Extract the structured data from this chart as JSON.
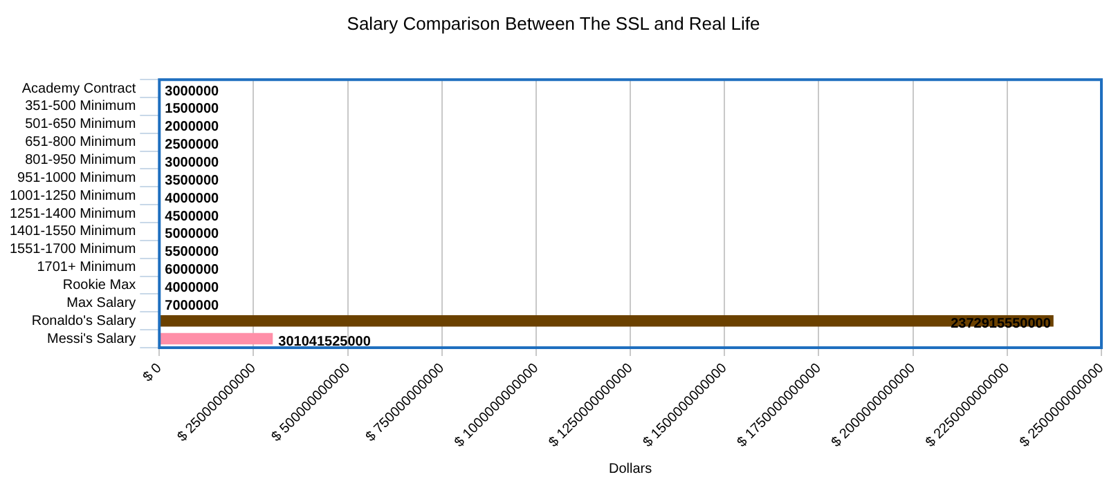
{
  "chart_data": {
    "type": "bar",
    "orientation": "horizontal",
    "title": "Salary Comparison Between The SSL and Real Life",
    "xlabel": "Dollars",
    "categories": [
      "Academy Contract",
      "351-500 Minimum",
      "501-650 Minimum",
      "651-800 Minimum",
      "801-950 Minimum",
      "951-1000 Minimum",
      "1001-1250 Minimum",
      "1251-1400 Minimum",
      "1401-1550 Minimum",
      "1551-1700 Minimum",
      "1701+ Minimum",
      "Rookie Max",
      "Max Salary",
      "Ronaldo's Salary",
      "Messi's Salary"
    ],
    "values": [
      3000000,
      1500000,
      2000000,
      2500000,
      3000000,
      3500000,
      4000000,
      4500000,
      5000000,
      5500000,
      6000000,
      4000000,
      7000000,
      2372915550000,
      301041525000
    ],
    "colors": [
      "#4472c4",
      "#4472c4",
      "#4472c4",
      "#4472c4",
      "#4472c4",
      "#4472c4",
      "#4472c4",
      "#4472c4",
      "#4472c4",
      "#4472c4",
      "#4472c4",
      "#4472c4",
      "#4472c4",
      "#6b4100",
      "#ff8fa8"
    ],
    "xlim": [
      0,
      2500000000000
    ],
    "xticks": [
      {
        "value": 0,
        "label": "$ 0"
      },
      {
        "value": 250000000000,
        "label": "$ 250000000000"
      },
      {
        "value": 500000000000,
        "label": "$ 500000000000"
      },
      {
        "value": 750000000000,
        "label": "$ 750000000000"
      },
      {
        "value": 1000000000000,
        "label": "$ 1000000000000"
      },
      {
        "value": 1250000000000,
        "label": "$ 1250000000000"
      },
      {
        "value": 1500000000000,
        "label": "$ 1500000000000"
      },
      {
        "value": 1750000000000,
        "label": "$ 1750000000000"
      },
      {
        "value": 2000000000000,
        "label": "$ 2000000000000"
      },
      {
        "value": 2250000000000,
        "label": "$ 2250000000000"
      },
      {
        "value": 2500000000000,
        "label": "$ 2500000000000"
      }
    ],
    "grid": "x",
    "data_labels": true,
    "legend": false
  }
}
